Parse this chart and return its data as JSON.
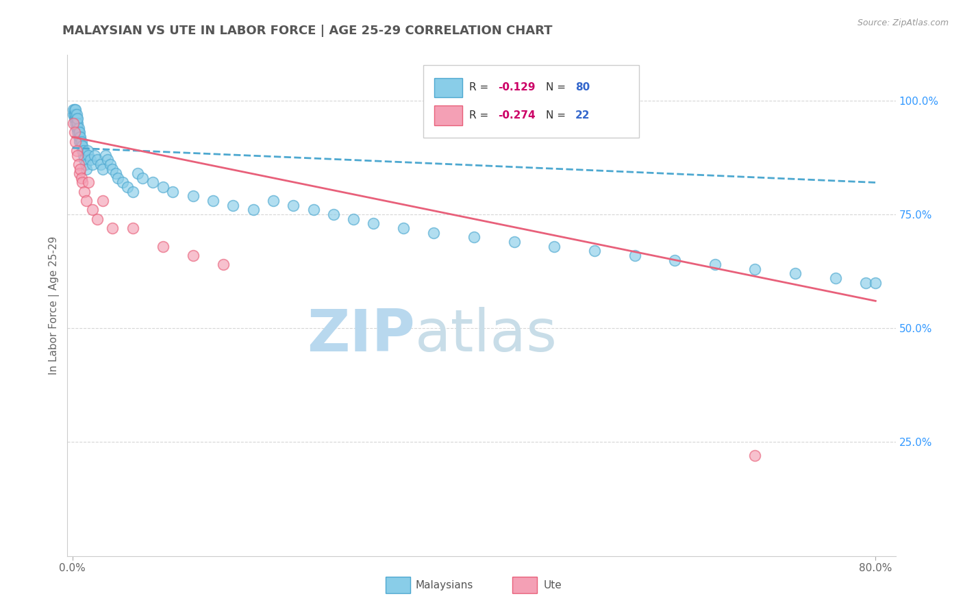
{
  "title": "MALAYSIAN VS UTE IN LABOR FORCE | AGE 25-29 CORRELATION CHART",
  "source_text": "Source: ZipAtlas.com",
  "ylabel_left": "In Labor Force | Age 25-29",
  "y_ticks_right": [
    0.25,
    0.5,
    0.75,
    1.0
  ],
  "y_tick_labels_right": [
    "25.0%",
    "50.0%",
    "75.0%",
    "100.0%"
  ],
  "xlim": [
    -0.005,
    0.82
  ],
  "ylim": [
    0.0,
    1.1
  ],
  "malaysian_R": -0.129,
  "malaysian_N": 80,
  "ute_R": -0.274,
  "ute_N": 22,
  "malaysian_color": "#89cde8",
  "ute_color": "#f4a0b5",
  "trend_malaysian_color": "#4da8d0",
  "trend_ute_color": "#e8607a",
  "background_color": "#ffffff",
  "grid_color": "#cccccc",
  "title_color": "#555555",
  "right_tick_color": "#3399ff",
  "watermark_color": "#cce5f5",
  "legend_R_color": "#cc0066",
  "legend_N_color": "#3366cc",
  "malaysian_x": [
    0.001,
    0.001,
    0.002,
    0.002,
    0.002,
    0.003,
    0.003,
    0.003,
    0.003,
    0.004,
    0.004,
    0.004,
    0.004,
    0.005,
    0.005,
    0.005,
    0.005,
    0.006,
    0.006,
    0.006,
    0.007,
    0.007,
    0.007,
    0.008,
    0.008,
    0.009,
    0.009,
    0.01,
    0.01,
    0.011,
    0.011,
    0.012,
    0.013,
    0.014,
    0.015,
    0.016,
    0.018,
    0.02,
    0.022,
    0.025,
    0.028,
    0.03,
    0.033,
    0.035,
    0.038,
    0.04,
    0.043,
    0.045,
    0.05,
    0.055,
    0.06,
    0.065,
    0.07,
    0.08,
    0.09,
    0.1,
    0.12,
    0.14,
    0.16,
    0.18,
    0.2,
    0.22,
    0.24,
    0.26,
    0.28,
    0.3,
    0.33,
    0.36,
    0.4,
    0.44,
    0.48,
    0.52,
    0.56,
    0.6,
    0.64,
    0.68,
    0.72,
    0.76,
    0.79,
    0.8
  ],
  "malaysian_y": [
    0.97,
    0.98,
    0.96,
    0.97,
    0.98,
    0.95,
    0.96,
    0.97,
    0.98,
    0.94,
    0.95,
    0.96,
    0.97,
    0.93,
    0.94,
    0.95,
    0.96,
    0.92,
    0.93,
    0.94,
    0.91,
    0.92,
    0.93,
    0.91,
    0.92,
    0.9,
    0.91,
    0.89,
    0.9,
    0.88,
    0.89,
    0.87,
    0.86,
    0.85,
    0.89,
    0.88,
    0.87,
    0.86,
    0.88,
    0.87,
    0.86,
    0.85,
    0.88,
    0.87,
    0.86,
    0.85,
    0.84,
    0.83,
    0.82,
    0.81,
    0.8,
    0.84,
    0.83,
    0.82,
    0.81,
    0.8,
    0.79,
    0.78,
    0.77,
    0.76,
    0.78,
    0.77,
    0.76,
    0.75,
    0.74,
    0.73,
    0.72,
    0.71,
    0.7,
    0.69,
    0.68,
    0.67,
    0.66,
    0.65,
    0.64,
    0.63,
    0.62,
    0.61,
    0.6,
    0.6
  ],
  "ute_x": [
    0.001,
    0.002,
    0.003,
    0.004,
    0.005,
    0.006,
    0.007,
    0.008,
    0.009,
    0.01,
    0.012,
    0.014,
    0.016,
    0.02,
    0.025,
    0.03,
    0.04,
    0.06,
    0.09,
    0.12,
    0.15,
    0.68
  ],
  "ute_y": [
    0.95,
    0.93,
    0.91,
    0.89,
    0.88,
    0.86,
    0.84,
    0.85,
    0.83,
    0.82,
    0.8,
    0.78,
    0.82,
    0.76,
    0.74,
    0.78,
    0.72,
    0.72,
    0.68,
    0.66,
    0.64,
    0.22
  ],
  "mal_trend_x0": 0.0,
  "mal_trend_x1": 0.8,
  "mal_trend_y0": 0.896,
  "mal_trend_y1": 0.82,
  "ute_trend_x0": 0.0,
  "ute_trend_x1": 0.8,
  "ute_trend_y0": 0.92,
  "ute_trend_y1": 0.56
}
